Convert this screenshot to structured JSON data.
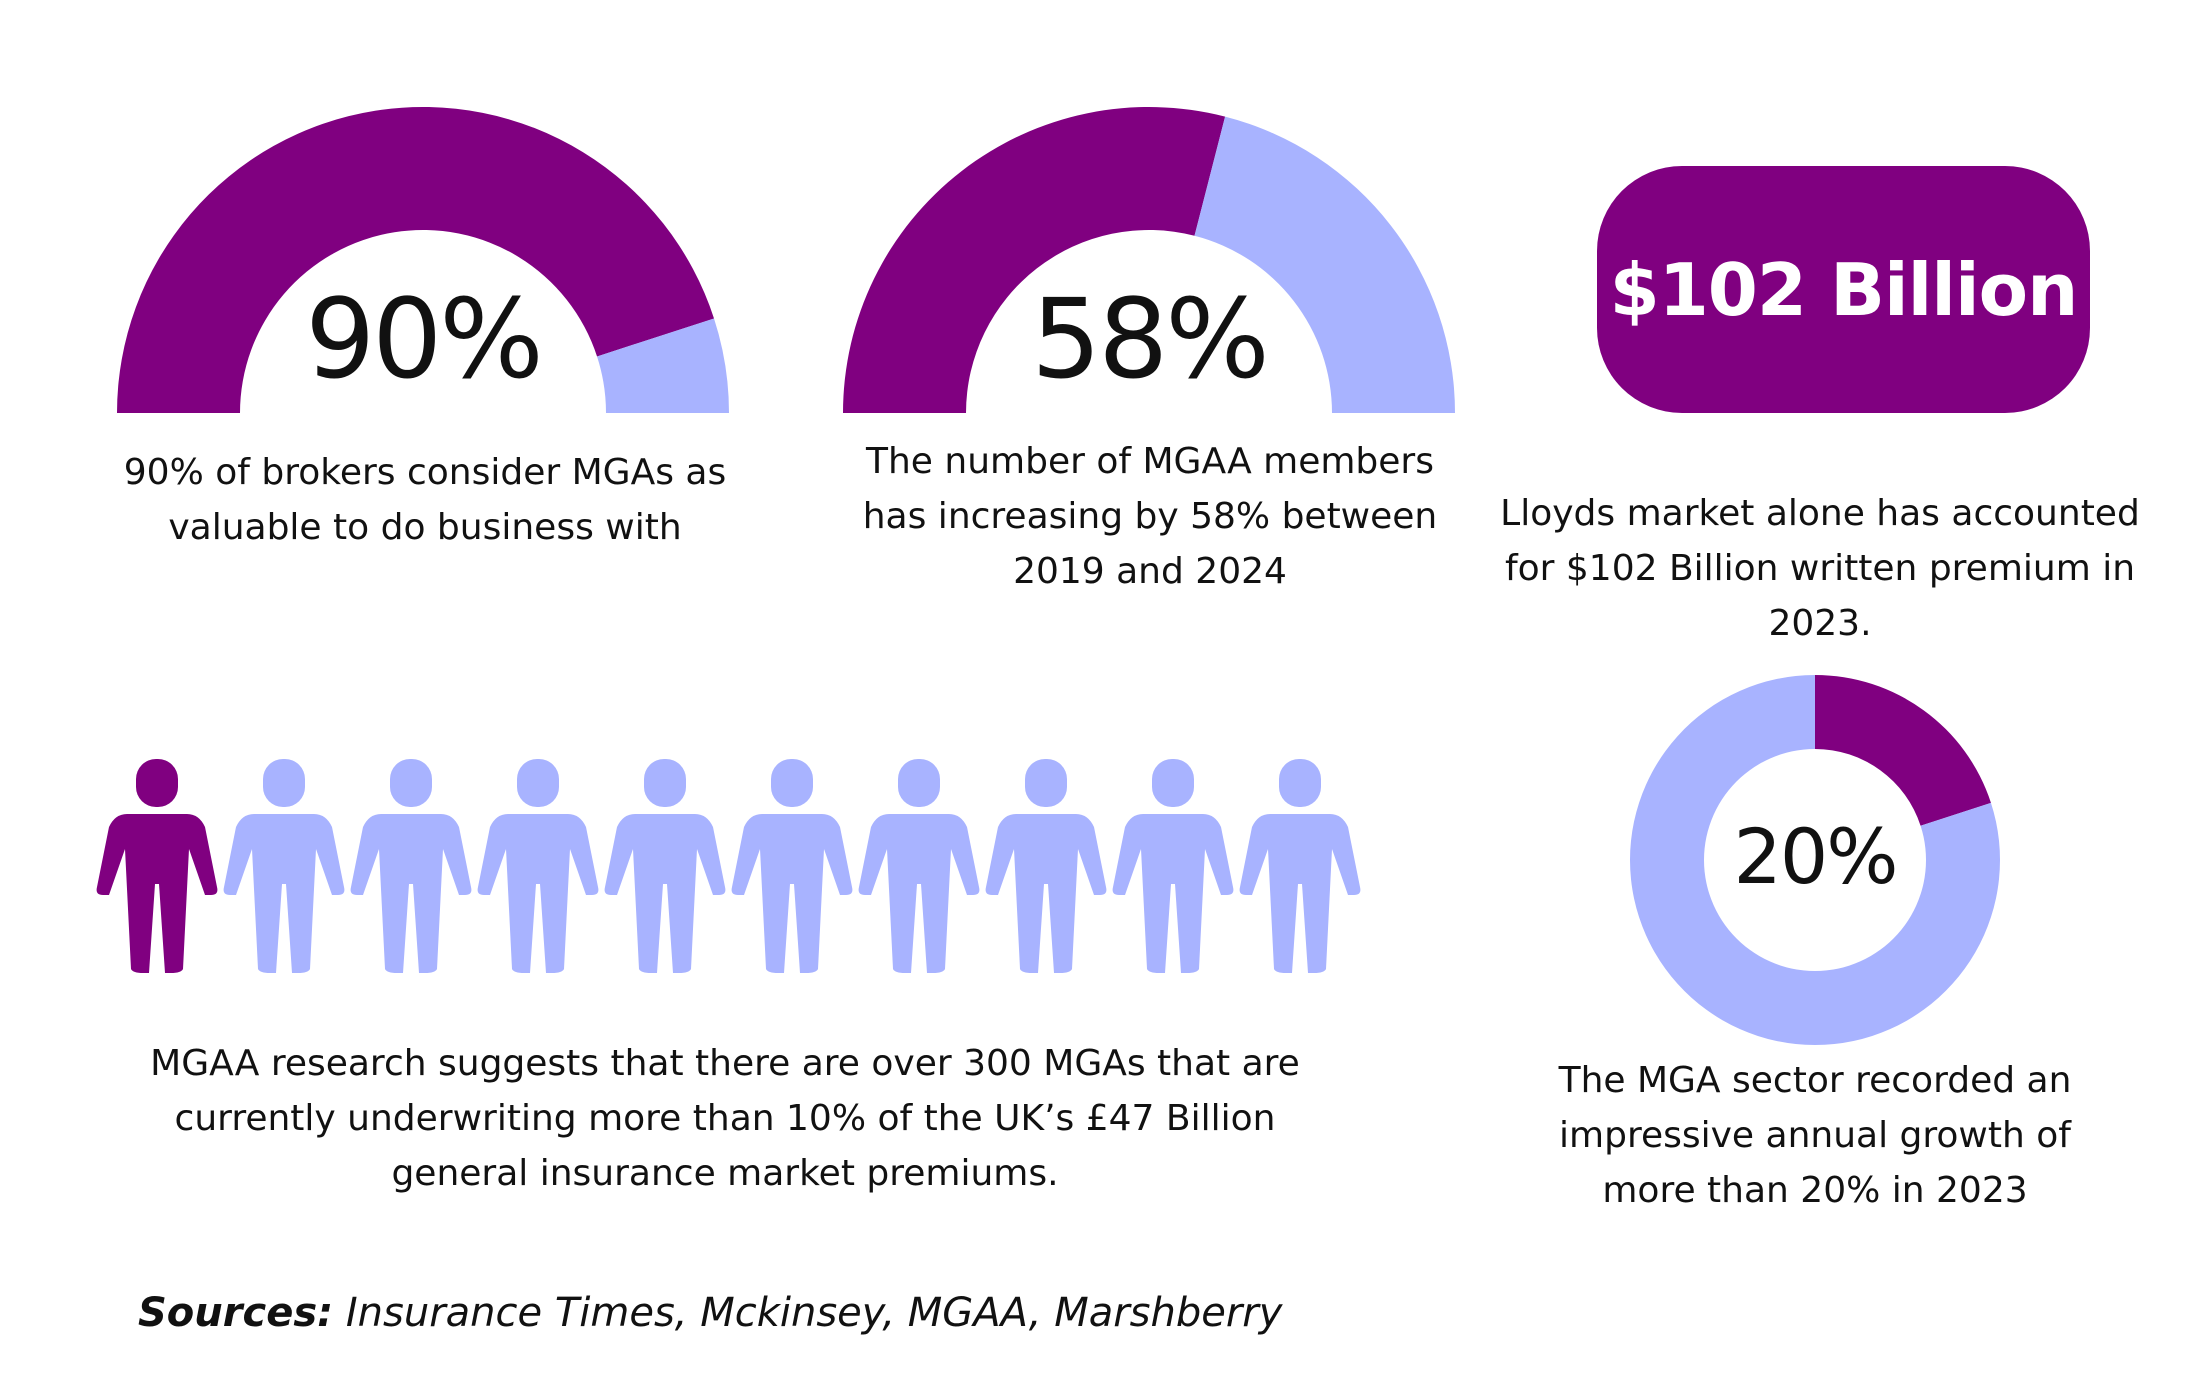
{
  "colors": {
    "primary": "#800080",
    "secondary": "#A8B3FF"
  },
  "chart_data": [
    {
      "type": "pie",
      "style": "half-gauge",
      "values": [
        90,
        10
      ],
      "label": "90%",
      "caption": "90% of brokers consider MGAs as valuable to do business with"
    },
    {
      "type": "pie",
      "style": "half-gauge",
      "values": [
        58,
        42
      ],
      "label": "58%",
      "caption": "The number of MGAA members has increasing by 58% between 2019 and 2024"
    },
    {
      "type": "pie",
      "style": "donut",
      "values": [
        20,
        80
      ],
      "label": "20%",
      "caption": "The MGA sector recorded an impressive annual growth of more than 20% in 2023"
    },
    {
      "type": "pictogram",
      "total": 10,
      "highlighted": 1,
      "caption": "MGAA research suggests that there are over 300 MGAs that are currently underwriting more than 10% of the UK’s £47 Billion general insurance market premiums."
    }
  ],
  "highlight": {
    "value": "$102 Billion",
    "caption": "Lloyds market alone has accounted for $102 Billion written premium in 2023."
  },
  "sources": {
    "label": "Sources:",
    "text": " Insurance Times, Mckinsey, MGAA, Marshberry"
  }
}
